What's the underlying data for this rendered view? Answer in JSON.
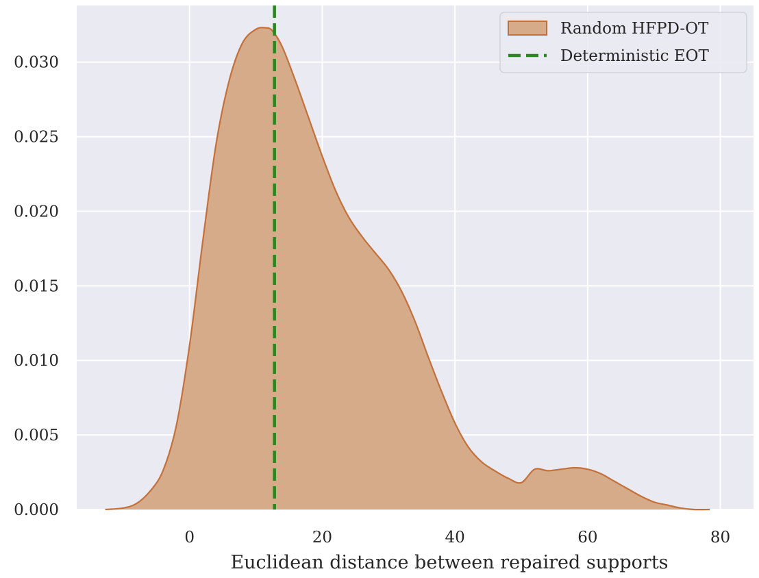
{
  "chart_data": {
    "type": "area",
    "title": "",
    "xlabel": "Euclidean distance between repaired supports",
    "ylabel": "",
    "xlim": [
      -17,
      85
    ],
    "ylim": [
      0,
      0.0338
    ],
    "x_ticks": [
      0,
      20,
      40,
      60,
      80
    ],
    "x_tick_labels": [
      "0",
      "20",
      "40",
      "60",
      "80"
    ],
    "y_ticks": [
      0,
      0.005,
      0.01,
      0.015,
      0.02,
      0.025,
      0.03
    ],
    "y_tick_labels": [
      "0.000",
      "0.005",
      "0.010",
      "0.015",
      "0.020",
      "0.025",
      "0.030"
    ],
    "grid": true,
    "legend_position": "upper right",
    "series": [
      {
        "name": "Random HFPD-OT",
        "kind": "kde-area",
        "color": "#c4703a",
        "fill_color": "#d5ab8a",
        "x": [
          -12.7,
          -10,
          -8,
          -6,
          -4,
          -2,
          0,
          2,
          4,
          6,
          8,
          10,
          11.5,
          12.5,
          14,
          16,
          18,
          20,
          22,
          24,
          26,
          28,
          30,
          32,
          34,
          36,
          38,
          40,
          42,
          44,
          46,
          48,
          50,
          52,
          54,
          56,
          58,
          60,
          62,
          64,
          66,
          68,
          70,
          72,
          74,
          76,
          78.4
        ],
        "y": [
          0.0,
          0.0001,
          0.0004,
          0.0012,
          0.0026,
          0.0056,
          0.011,
          0.018,
          0.0245,
          0.0288,
          0.0313,
          0.0322,
          0.0323,
          0.0321,
          0.031,
          0.0287,
          0.0262,
          0.0237,
          0.0214,
          0.0196,
          0.0183,
          0.0172,
          0.0161,
          0.0146,
          0.0126,
          0.0102,
          0.0079,
          0.0058,
          0.0042,
          0.0032,
          0.0026,
          0.0021,
          0.0018,
          0.0027,
          0.0026,
          0.0027,
          0.0028,
          0.0027,
          0.0024,
          0.0019,
          0.0014,
          0.0009,
          0.0005,
          0.0003,
          0.0001,
          0.0,
          0.0
        ]
      },
      {
        "name": "Deterministic EOT",
        "kind": "vline",
        "color": "#2a861e",
        "x_value": 12.8
      }
    ],
    "colors": {
      "plot_background": "#eaeaf2",
      "grid": "#ffffff",
      "area_edge": "#c4703a",
      "area_fill": "#d5ab8a",
      "vline": "#2a861e"
    }
  }
}
